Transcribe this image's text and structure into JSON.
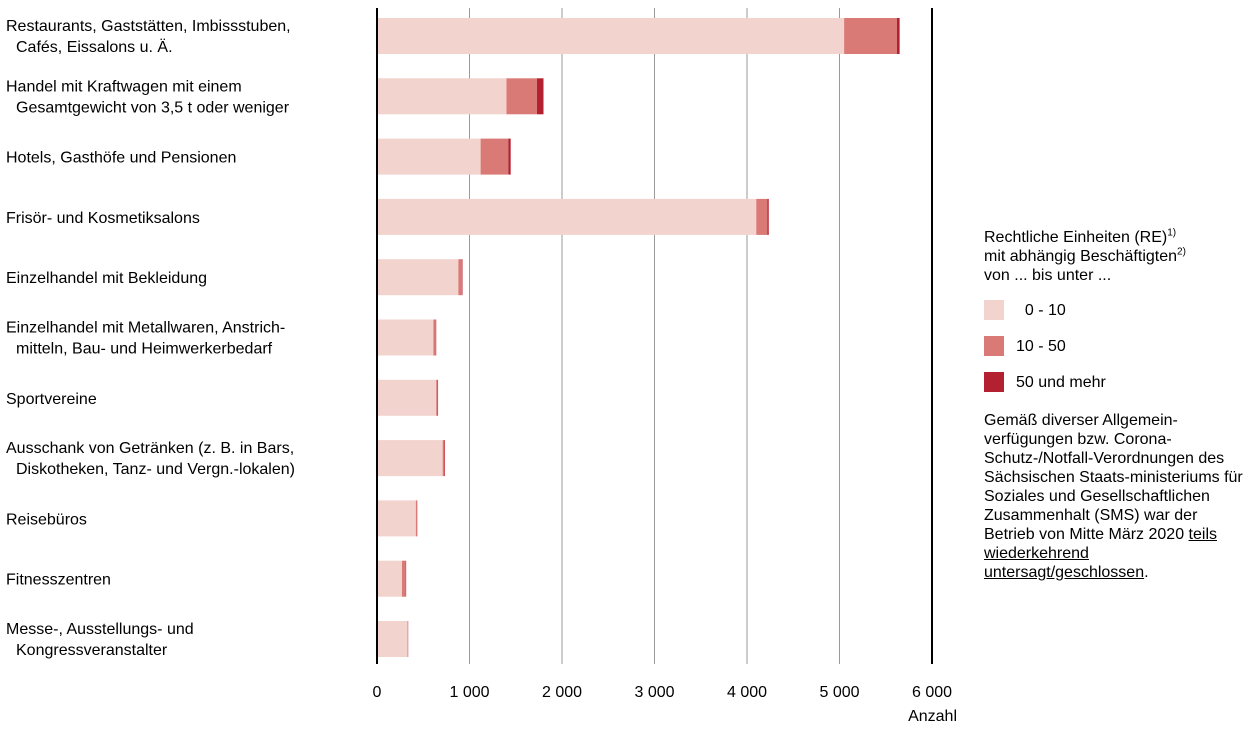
{
  "chart_data": {
    "type": "bar",
    "stacked": true,
    "orientation": "horizontal",
    "categories": [
      [
        "Restaurants, Gaststätten, Imbissstuben,",
        "Cafés, Eissalons u. Ä."
      ],
      [
        "Handel mit Kraftwagen mit einem",
        "Gesamtgewicht von 3,5 t oder weniger"
      ],
      [
        "Hotels, Gasthöfe und Pensionen"
      ],
      [
        "Frisör- und Kosmetiksalons"
      ],
      [
        "Einzelhandel mit Bekleidung"
      ],
      [
        "Einzelhandel mit Metallwaren, Anstrich-",
        "mitteln, Bau- und Heimwerkerbedarf"
      ],
      [
        "Sportvereine"
      ],
      [
        "Ausschank von Getränken (z. B. in Bars,",
        "Diskotheken, Tanz- und Vergn.-lokalen)"
      ],
      [
        "Reisebüros"
      ],
      [
        "Fitnesszentren"
      ],
      [
        "Messe-, Ausstellungs- und",
        "Kongressveranstalter"
      ]
    ],
    "series": [
      {
        "name": "0 - 10",
        "color": "#f2d3ce",
        "values": [
          5050,
          1400,
          1120,
          4100,
          880,
          610,
          640,
          710,
          420,
          270,
          330
        ]
      },
      {
        "name": "10 - 50",
        "color": "#d97a76",
        "values": [
          570,
          330,
          300,
          120,
          40,
          25,
          15,
          20,
          12,
          40,
          5
        ]
      },
      {
        "name": "50 und mehr",
        "color": "#b3202f",
        "values": [
          30,
          70,
          25,
          15,
          5,
          5,
          5,
          5,
          3,
          5,
          2
        ]
      }
    ],
    "xlabel": "Anzahl",
    "xlim": [
      0,
      6000
    ],
    "xticks": [
      0,
      1000,
      2000,
      3000,
      4000,
      5000,
      6000
    ],
    "xtick_labels": [
      "0",
      "1 000",
      "2 000",
      "3 000",
      "4 000",
      "5 000",
      "6 000"
    ],
    "grid": true,
    "legend_position": "right"
  },
  "legend": {
    "title_lines": [
      {
        "text": "Rechtliche Einheiten (RE)",
        "sup": "1)"
      },
      {
        "text": "mit abhängig Beschäftigten",
        "sup": "2)"
      },
      {
        "text": "von ... bis unter ...",
        "sup": ""
      }
    ],
    "items": [
      {
        "label": "  0 - 10",
        "color": "#f2d3ce"
      },
      {
        "label": "10 - 50",
        "color": "#d97a76"
      },
      {
        "label": "50 und mehr",
        "color": "#b3202f"
      }
    ],
    "note_before": "Gemäß diverser Allgemein-verfügungen bzw. Corona-Schutz-/Notfall-Verordnungen des Sächsischen Staats-ministeriums für Soziales und Gesellschaftlichen Zusammenhalt (SMS) war der Betrieb von Mitte März 2020 ",
    "note_underlined": "teils wiederkehrend untersagt/geschlossen",
    "note_after": "."
  }
}
